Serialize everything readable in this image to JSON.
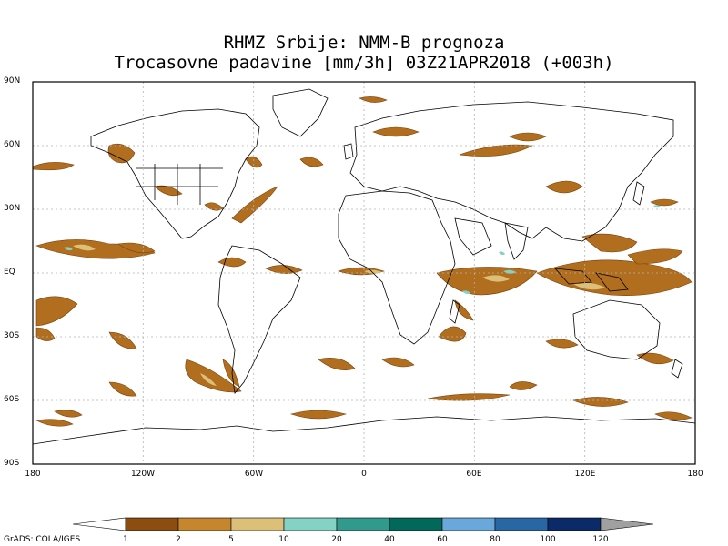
{
  "title": {
    "line1": "RHMZ Srbije: NMM-B prognoza",
    "line2": "Trocasovne padavine [mm/3h] 03Z21APR2018 (+003h)"
  },
  "axes": {
    "lat_labels": [
      "90N",
      "60N",
      "30N",
      "EQ",
      "30S",
      "60S",
      "90S"
    ],
    "lon_labels": [
      "180",
      "120W",
      "60W",
      "0",
      "60E",
      "120E",
      "180"
    ]
  },
  "colorbar": {
    "labels": [
      "1",
      "2",
      "5",
      "10",
      "20",
      "40",
      "60",
      "80",
      "100",
      "120"
    ],
    "colors": [
      "#ffffff",
      "#8c4e10",
      "#c5862e",
      "#dcc07a",
      "#84d2c4",
      "#329a8c",
      "#02685a",
      "#6aa8dc",
      "#2866a4",
      "#0a2a68",
      "#a0a0a0"
    ]
  },
  "credit": "GrADS: COLA/IGES",
  "colors": {
    "frame": "#000000",
    "grid": "#b4b4b4",
    "coast": "#000000",
    "precip_light": "#8c4e10",
    "precip_moderate": "#c5862e",
    "precip_heavy": "#dcc07a",
    "precip_very_heavy": "#84d2c4"
  }
}
